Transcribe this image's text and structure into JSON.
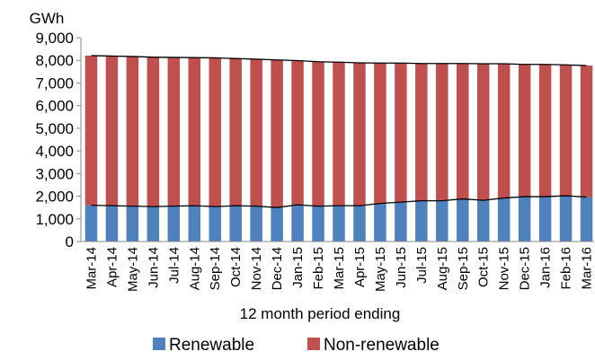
{
  "chart_data": {
    "type": "bar",
    "stacked": true,
    "ylabel": "GWh",
    "xlabel": "12 month period ending",
    "ylim": [
      0,
      9000
    ],
    "yticks": [
      "0",
      "1,000",
      "2,000",
      "3,000",
      "4,000",
      "5,000",
      "6,000",
      "7,000",
      "8,000",
      "9,000"
    ],
    "grid": false,
    "legend_position": "bottom",
    "categories": [
      "Mar-14",
      "Apr-14",
      "May-14",
      "Jun-14",
      "Jul-14",
      "Aug-14",
      "Sep-14",
      "Oct-14",
      "Nov-14",
      "Dec-14",
      "Jan-15",
      "Feb-15",
      "Mar-15",
      "Apr-15",
      "May-15",
      "Jun-15",
      "Jul-15",
      "Aug-15",
      "Sep-15",
      "Oct-15",
      "Nov-15",
      "Dec-15",
      "Jan-16",
      "Feb-16",
      "Mar-16"
    ],
    "series": [
      {
        "name": "Renewable",
        "color": "#4f81bd",
        "values": [
          1600,
          1580,
          1560,
          1540,
          1560,
          1580,
          1540,
          1580,
          1560,
          1500,
          1620,
          1560,
          1580,
          1580,
          1680,
          1740,
          1800,
          1800,
          1880,
          1820,
          1920,
          1980,
          1980,
          2020,
          1960
        ]
      },
      {
        "name": "Non-renewable",
        "color": "#c0504d",
        "values": [
          6610,
          6610,
          6610,
          6600,
          6570,
          6540,
          6570,
          6500,
          6490,
          6520,
          6370,
          6380,
          6340,
          6310,
          6200,
          6140,
          6060,
          6060,
          5980,
          6030,
          5930,
          5840,
          5840,
          5780,
          5810
        ]
      }
    ],
    "overlay_lines": "black lines tracing top of each stacked series"
  }
}
